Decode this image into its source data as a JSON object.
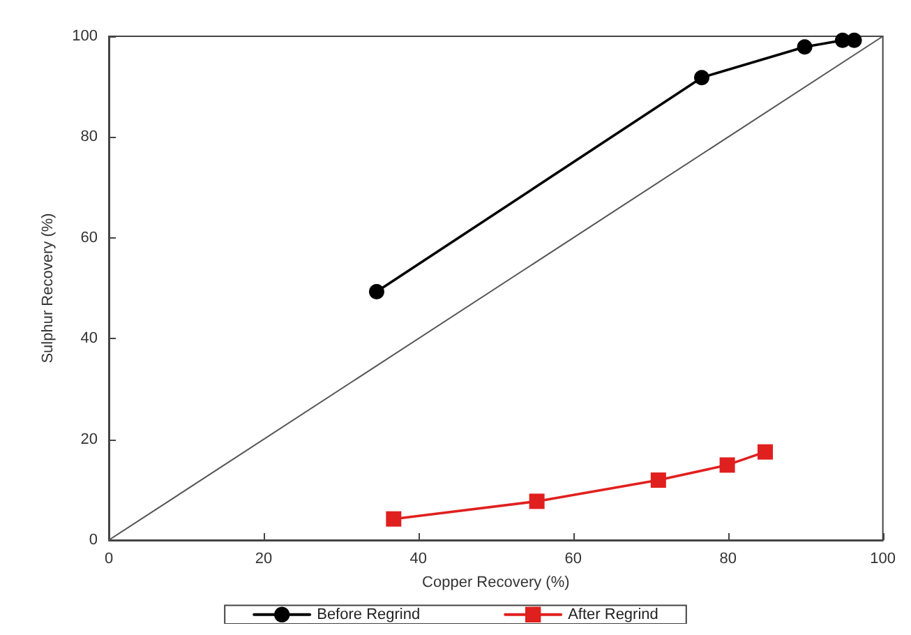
{
  "chart_data": {
    "type": "line",
    "xlabel": "Copper Recovery (%)",
    "ylabel": "Sulphur Recovery (%)",
    "xlim": [
      0,
      100
    ],
    "ylim": [
      0,
      100
    ],
    "xticks": [
      0,
      20,
      40,
      60,
      80,
      100
    ],
    "yticks": [
      0,
      20,
      40,
      60,
      80,
      100
    ],
    "grid": false,
    "legend": "bottom",
    "line_style": "solid",
    "series": [
      {
        "name": "Before Regrind",
        "color": "#000000",
        "marker": "circle",
        "x": [
          34.6,
          76.6,
          89.9,
          94.8,
          96.3
        ],
        "values": [
          49.3,
          91.8,
          97.9,
          99.2,
          99.2
        ]
      },
      {
        "name": "After Regrind",
        "color": "#e0201e",
        "marker": "square",
        "x": [
          36.8,
          55.3,
          71.0,
          79.9,
          84.8
        ],
        "values": [
          4.2,
          7.7,
          11.9,
          14.9,
          17.5
        ]
      },
      {
        "color": "#555555",
        "marker": "none",
        "x": [
          0,
          100
        ],
        "values": [
          0,
          100
        ]
      }
    ]
  }
}
